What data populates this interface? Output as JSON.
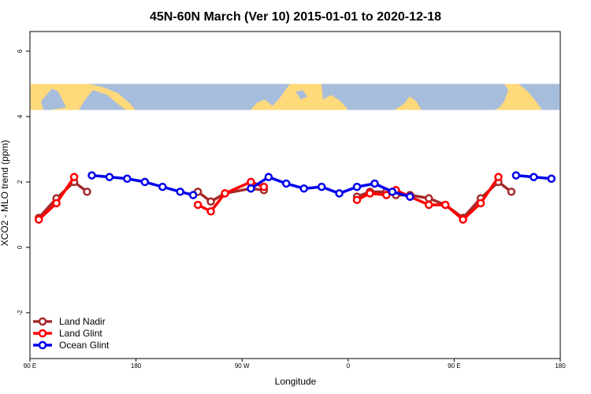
{
  "chart_data": {
    "type": "line",
    "title": "45N-60N March (Ver 10)   2015-01-01 to 2020-12-18",
    "xlabel": "Longitude",
    "ylabel": "XCO2 - MLO trend (ppm)",
    "xlim": [
      -90,
      360
    ],
    "ylim": [
      -3.4,
      6.6
    ],
    "x_ticks": [
      {
        "value": -90,
        "label": "90 E"
      },
      {
        "value": 0,
        "label": "180"
      },
      {
        "value": 90,
        "label": "90 W"
      },
      {
        "value": 180,
        "label": "0"
      },
      {
        "value": 270,
        "label": "90 E"
      },
      {
        "value": 360,
        "label": "180"
      }
    ],
    "y_ticks": [
      {
        "value": -2,
        "label": "-2"
      },
      {
        "value": 0,
        "label": "0"
      },
      {
        "value": 2,
        "label": "2"
      },
      {
        "value": 4,
        "label": "4"
      },
      {
        "value": 6,
        "label": "6"
      }
    ],
    "map_band": {
      "y_min": 4.2,
      "y_max": 5.0,
      "land_color": "#FFD97A",
      "ocean_color": "#A7BDDC"
    },
    "series": [
      {
        "name": "Land Nadir",
        "color": "#A52A2A",
        "segments": [
          [
            [
              -82.5,
              0.9
            ],
            [
              -67.5,
              1.5
            ],
            [
              -52.5,
              2.0
            ],
            [
              -41.5,
              1.7
            ]
          ],
          [
            [
              52.5,
              1.7
            ],
            [
              63.5,
              1.4
            ],
            [
              75.5,
              1.65
            ],
            [
              97.5,
              1.8
            ],
            [
              108.5,
              1.75
            ]
          ],
          [
            [
              187.5,
              1.55
            ],
            [
              198.5,
              1.7
            ],
            [
              212.5,
              1.7
            ],
            [
              220.5,
              1.6
            ],
            [
              232.5,
              1.6
            ],
            [
              248.5,
              1.5
            ],
            [
              262.5,
              1.3
            ],
            [
              277.5,
              0.9
            ],
            [
              292.5,
              1.5
            ],
            [
              307.5,
              2.0
            ],
            [
              318.5,
              1.7
            ]
          ]
        ]
      },
      {
        "name": "Land Glint",
        "color": "#FF0000",
        "segments": [
          [
            [
              -82.5,
              0.85
            ],
            [
              -67.5,
              1.35
            ],
            [
              -52.5,
              2.15
            ]
          ],
          [
            [
              52.5,
              1.3
            ],
            [
              63.5,
              1.1
            ],
            [
              75.5,
              1.65
            ],
            [
              97.5,
              2.0
            ],
            [
              108.5,
              1.85
            ]
          ],
          [
            [
              187.5,
              1.45
            ],
            [
              198.5,
              1.65
            ],
            [
              212.5,
              1.6
            ],
            [
              220.5,
              1.75
            ],
            [
              232.5,
              1.55
            ],
            [
              248.5,
              1.3
            ],
            [
              262.5,
              1.3
            ],
            [
              277.5,
              0.85
            ],
            [
              292.5,
              1.35
            ],
            [
              307.5,
              2.15
            ]
          ]
        ]
      },
      {
        "name": "Ocean Glint",
        "color": "#0000EE",
        "segments": [
          [
            [
              -37.5,
              2.2
            ],
            [
              -22.5,
              2.15
            ],
            [
              -7.5,
              2.1
            ],
            [
              7.5,
              2.0
            ],
            [
              22.5,
              1.85
            ],
            [
              37.5,
              1.7
            ],
            [
              48.5,
              1.6
            ]
          ],
          [
            [
              97.5,
              1.8
            ],
            [
              112.5,
              2.15
            ],
            [
              127.5,
              1.95
            ],
            [
              142.5,
              1.8
            ],
            [
              157.5,
              1.85
            ],
            [
              172.5,
              1.65
            ],
            [
              187.5,
              1.85
            ],
            [
              202.5,
              1.95
            ],
            [
              217.5,
              1.7
            ],
            [
              232.5,
              1.55
            ]
          ],
          [
            [
              322.5,
              2.2
            ],
            [
              337.5,
              2.15
            ],
            [
              352.5,
              2.1
            ]
          ]
        ]
      }
    ],
    "legend": {
      "placement": "bottom-left",
      "entries": [
        "Land Nadir",
        "Land Glint",
        "Ocean Glint"
      ]
    }
  }
}
